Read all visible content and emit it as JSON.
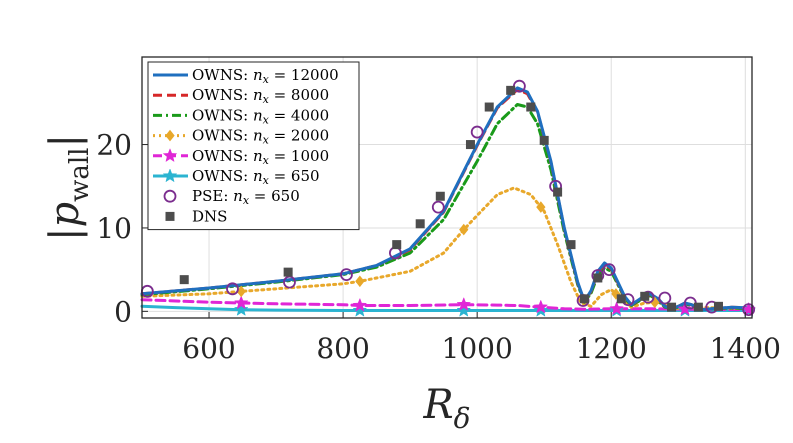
{
  "chart_data": {
    "type": "line",
    "xlabel": "R",
    "xlabel_sub": "δ",
    "ylabel": "|p",
    "ylabel_sub": "wall",
    "ylabel_close": "|",
    "xlim": [
      500,
      1410
    ],
    "ylim": [
      -0.8,
      30.5
    ],
    "xticks": [
      600,
      800,
      1000,
      1200,
      1400
    ],
    "yticks": [
      0,
      10,
      20
    ],
    "xtick_labels": [
      "600",
      "800",
      "1000",
      "1200",
      "1400"
    ],
    "ytick_labels": [
      "0",
      "10",
      "20"
    ],
    "grid": true,
    "legend_position": "top-left",
    "series": [
      {
        "name": "OWNS: n_x = 12000",
        "label_prefix": "OWNS: ",
        "label_var": "n",
        "label_sub": "x",
        "label_value": " = 12000",
        "color": "#1f6fbf",
        "dash": "solid",
        "marker": "none",
        "x": [
          500,
          600,
          700,
          800,
          850,
          900,
          950,
          1000,
          1030,
          1060,
          1075,
          1090,
          1110,
          1130,
          1150,
          1160,
          1170,
          1180,
          1190,
          1200,
          1210,
          1220,
          1230,
          1245,
          1258,
          1270,
          1280,
          1290,
          1300,
          1310,
          1320,
          1335,
          1350,
          1380,
          1410
        ],
        "y": [
          2.1,
          2.8,
          3.6,
          4.5,
          5.5,
          7.5,
          12.0,
          20.0,
          24.5,
          26.8,
          26.3,
          24.0,
          18.0,
          10.0,
          3.5,
          1.2,
          2.5,
          4.8,
          5.8,
          5.2,
          3.5,
          1.8,
          0.8,
          1.6,
          2.1,
          1.5,
          0.6,
          0.3,
          0.6,
          1.0,
          0.8,
          0.2,
          0.3,
          0.5,
          0.4
        ],
        "marker_x": []
      },
      {
        "name": "OWNS: n_x = 8000",
        "label_prefix": "OWNS: ",
        "label_var": "n",
        "label_sub": "x",
        "label_value": " = 8000",
        "color": "#d62728",
        "dash": "dashed",
        "marker": "none",
        "x": [
          500,
          600,
          700,
          800,
          850,
          900,
          950,
          1000,
          1030,
          1060,
          1075,
          1090,
          1110,
          1130,
          1150,
          1160,
          1170,
          1180,
          1190,
          1200,
          1210,
          1220,
          1230,
          1245,
          1258,
          1270,
          1280,
          1290,
          1300,
          1310,
          1320,
          1335,
          1350,
          1380,
          1410
        ],
        "y": [
          2.1,
          2.8,
          3.6,
          4.5,
          5.5,
          7.4,
          11.9,
          19.9,
          24.4,
          26.6,
          26.1,
          23.9,
          17.9,
          9.9,
          3.4,
          1.2,
          2.4,
          4.7,
          5.6,
          5.1,
          3.4,
          1.7,
          0.8,
          1.5,
          2.0,
          1.4,
          0.6,
          0.3,
          0.6,
          1.0,
          0.8,
          0.2,
          0.3,
          0.5,
          0.4
        ],
        "marker_x": []
      },
      {
        "name": "OWNS: n_x = 4000",
        "label_prefix": "OWNS: ",
        "label_var": "n",
        "label_sub": "x",
        "label_value": " = 4000",
        "color": "#1a9a1a",
        "dash": "dashdot",
        "marker": "none",
        "x": [
          500,
          600,
          700,
          800,
          850,
          900,
          950,
          1000,
          1030,
          1060,
          1075,
          1090,
          1110,
          1130,
          1150,
          1160,
          1170,
          1180,
          1190,
          1200,
          1210,
          1220,
          1230,
          1245,
          1258,
          1270,
          1280,
          1290,
          1300,
          1310,
          1320,
          1335,
          1350,
          1380,
          1410
        ],
        "y": [
          2.0,
          2.7,
          3.5,
          4.4,
          5.3,
          7.0,
          11.0,
          18.0,
          22.5,
          24.8,
          24.5,
          22.5,
          17.0,
          9.5,
          3.2,
          1.1,
          2.2,
          4.3,
          5.2,
          4.8,
          3.2,
          1.6,
          0.7,
          1.4,
          1.9,
          1.3,
          0.5,
          0.3,
          0.5,
          0.9,
          0.7,
          0.2,
          0.3,
          0.4,
          0.3
        ],
        "marker_x": []
      },
      {
        "name": "OWNS: n_x = 2000",
        "label_prefix": "OWNS: ",
        "label_var": "n",
        "label_sub": "x",
        "label_value": " = 2000",
        "color": "#e8a82b",
        "dash": "dotted",
        "marker": "diamond",
        "x": [
          500,
          600,
          650,
          700,
          800,
          825,
          900,
          950,
          980,
          1000,
          1030,
          1055,
          1080,
          1100,
          1120,
          1140,
          1155,
          1170,
          1185,
          1200,
          1215,
          1230,
          1250,
          1270,
          1290,
          1310,
          1330,
          1360,
          1410
        ],
        "y": [
          1.8,
          2.1,
          2.4,
          2.7,
          3.3,
          3.6,
          4.8,
          7.0,
          9.8,
          11.5,
          14.0,
          14.8,
          14.0,
          12.0,
          8.0,
          3.5,
          1.0,
          0.6,
          2.0,
          2.6,
          1.5,
          0.5,
          1.0,
          1.1,
          0.4,
          0.3,
          0.5,
          0.4,
          0.3
        ],
        "marker_x": [
          648,
          825,
          980,
          1095,
          1207,
          1265
        ]
      },
      {
        "name": "OWNS: n_x = 1000",
        "label_prefix": "OWNS: ",
        "label_var": "n",
        "label_sub": "x",
        "label_value": " = 1000",
        "color": "#e026d6",
        "dash": "dashed",
        "marker": "star",
        "x": [
          500,
          600,
          648,
          700,
          800,
          825,
          900,
          980,
          1030,
          1060,
          1095,
          1130,
          1160,
          1200,
          1260,
          1320,
          1410
        ],
        "y": [
          1.4,
          1.1,
          1.0,
          0.9,
          0.8,
          0.7,
          0.7,
          0.8,
          0.75,
          0.7,
          0.5,
          0.3,
          0.25,
          0.3,
          0.3,
          0.25,
          0.2
        ],
        "marker_x": [
          648,
          825,
          980,
          1095,
          1208,
          1310,
          1405
        ]
      },
      {
        "name": "OWNS: n_x = 650",
        "label_prefix": "OWNS: ",
        "label_var": "n",
        "label_sub": "x",
        "label_value": " = 650",
        "color": "#2bb4d1",
        "dash": "solid",
        "marker": "star",
        "x": [
          500,
          550,
          600,
          648,
          700,
          800,
          900,
          1000,
          1100,
          1200,
          1300,
          1410
        ],
        "y": [
          0.6,
          0.45,
          0.3,
          0.2,
          0.15,
          0.1,
          0.1,
          0.1,
          0.1,
          0.1,
          0.1,
          0.1
        ],
        "marker_x": [
          648,
          825,
          980,
          1095,
          1208,
          1310,
          1405
        ]
      }
    ],
    "scatter_series": [
      {
        "name": "PSE: n_x = 650",
        "label_prefix": "PSE: ",
        "label_var": "n",
        "label_sub": "x",
        "label_value": " = 650",
        "color": "#7b2d8e",
        "marker": "circle",
        "x": [
          508,
          635,
          720,
          805,
          878,
          942,
          1000,
          1063,
          1117,
          1158,
          1180,
          1197,
          1225,
          1255,
          1280,
          1318,
          1350,
          1405
        ],
        "y": [
          2.4,
          2.7,
          3.5,
          4.4,
          7.0,
          12.5,
          21.5,
          27.0,
          15.0,
          1.3,
          4.3,
          5.0,
          1.4,
          1.7,
          1.6,
          1.0,
          0.5,
          0.2
        ]
      },
      {
        "name": "DNS",
        "label_prefix": "DNS",
        "label_var": "",
        "label_sub": "",
        "label_value": "",
        "color": "#4d4d4d",
        "marker": "square",
        "x": [
          563,
          718,
          880,
          915,
          945,
          990,
          1018,
          1050,
          1080,
          1100,
          1120,
          1140,
          1160,
          1180,
          1215,
          1250,
          1290,
          1330,
          1360
        ],
        "y": [
          3.8,
          4.7,
          8.0,
          10.5,
          13.8,
          20.0,
          24.5,
          26.5,
          24.5,
          20.5,
          14.3,
          8.0,
          1.5,
          4.0,
          1.5,
          1.8,
          0.5,
          0.5,
          0.6
        ]
      }
    ]
  }
}
